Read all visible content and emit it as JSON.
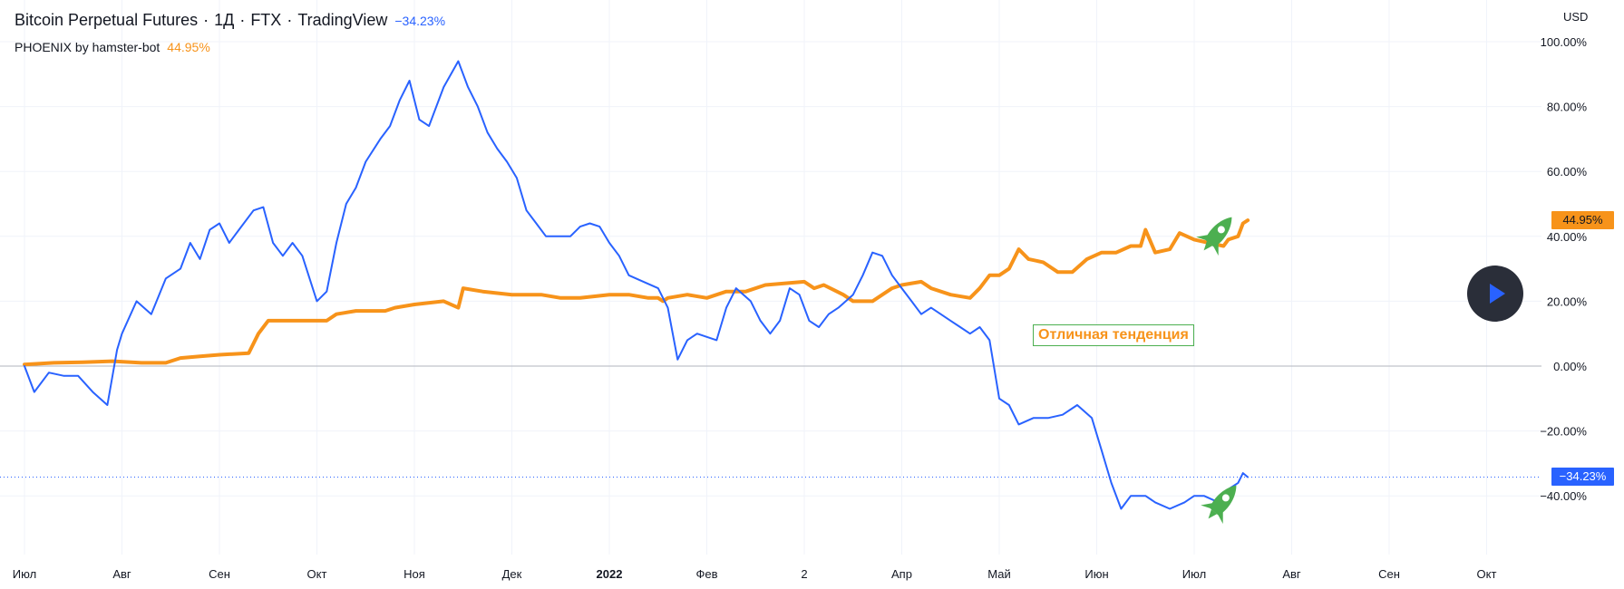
{
  "legend": {
    "symbol": "Bitcoin Perpetual Futures",
    "interval": "1Д",
    "exchange": "FTX",
    "source": "TradingView",
    "change": "−34.23%",
    "indicator_name": "PHOENIX by hamster-bot",
    "indicator_value": "44.95%"
  },
  "currency": "USD",
  "annotation": "Отличная тенденция",
  "price_tags": {
    "indicator": "44.95%",
    "price": "−34.23%"
  },
  "colors": {
    "btc_line": "#2962ff",
    "indicator_line": "#f7931a",
    "grid": "#f0f3fa",
    "zero_line": "#b2b5be",
    "rocket": "#4caf50"
  },
  "icons": [
    "rocket-icon",
    "play-icon"
  ],
  "chart_data": {
    "type": "line",
    "x_unit": "months since July 2021",
    "xlim": [
      -0.2,
      15.6
    ],
    "ylim": [
      -62,
      105
    ],
    "y_ticks": [
      100,
      80,
      60,
      40,
      20,
      0,
      -20,
      -40
    ],
    "y_tick_labels": [
      "100.00%",
      "80.00%",
      "60.00%",
      "40.00%",
      "20.00%",
      "0.00%",
      "−20.00%",
      "−40.00%"
    ],
    "x_ticks": [
      0,
      1,
      2,
      3,
      4,
      5,
      6,
      7,
      8,
      9,
      10,
      11,
      12,
      13,
      14,
      15
    ],
    "x_tick_labels": [
      "Июл",
      "Авг",
      "Сен",
      "Окт",
      "Ноя",
      "Дек",
      "2022",
      "Фев",
      "2",
      "Апр",
      "Май",
      "Июн",
      "Июл",
      "Авг",
      "Сен",
      "Окт"
    ],
    "grid": true,
    "series": [
      {
        "name": "Bitcoin Perpetual Futures",
        "color": "#2962ff",
        "points": [
          [
            0.0,
            0
          ],
          [
            0.1,
            -8
          ],
          [
            0.25,
            -2
          ],
          [
            0.4,
            -3
          ],
          [
            0.55,
            -3
          ],
          [
            0.7,
            -8
          ],
          [
            0.85,
            -12
          ],
          [
            0.95,
            5
          ],
          [
            1.0,
            10
          ],
          [
            1.15,
            20
          ],
          [
            1.3,
            16
          ],
          [
            1.45,
            27
          ],
          [
            1.6,
            30
          ],
          [
            1.7,
            38
          ],
          [
            1.8,
            33
          ],
          [
            1.9,
            42
          ],
          [
            2.0,
            44
          ],
          [
            2.1,
            38
          ],
          [
            2.2,
            42
          ],
          [
            2.35,
            48
          ],
          [
            2.45,
            49
          ],
          [
            2.55,
            38
          ],
          [
            2.65,
            34
          ],
          [
            2.75,
            38
          ],
          [
            2.85,
            34
          ],
          [
            3.0,
            20
          ],
          [
            3.1,
            23
          ],
          [
            3.2,
            38
          ],
          [
            3.3,
            50
          ],
          [
            3.4,
            55
          ],
          [
            3.5,
            63
          ],
          [
            3.65,
            70
          ],
          [
            3.75,
            74
          ],
          [
            3.85,
            82
          ],
          [
            3.95,
            88
          ],
          [
            4.05,
            76
          ],
          [
            4.15,
            74
          ],
          [
            4.3,
            86
          ],
          [
            4.45,
            94
          ],
          [
            4.55,
            86
          ],
          [
            4.65,
            80
          ],
          [
            4.75,
            72
          ],
          [
            4.85,
            67
          ],
          [
            4.95,
            63
          ],
          [
            5.05,
            58
          ],
          [
            5.15,
            48
          ],
          [
            5.25,
            44
          ],
          [
            5.35,
            40
          ],
          [
            5.5,
            40
          ],
          [
            5.6,
            40
          ],
          [
            5.7,
            43
          ],
          [
            5.8,
            44
          ],
          [
            5.9,
            43
          ],
          [
            6.0,
            38
          ],
          [
            6.1,
            34
          ],
          [
            6.2,
            28
          ],
          [
            6.35,
            26
          ],
          [
            6.5,
            24
          ],
          [
            6.6,
            18
          ],
          [
            6.7,
            2
          ],
          [
            6.8,
            8
          ],
          [
            6.9,
            10
          ],
          [
            7.0,
            9
          ],
          [
            7.1,
            8
          ],
          [
            7.2,
            18
          ],
          [
            7.3,
            24
          ],
          [
            7.45,
            20
          ],
          [
            7.55,
            14
          ],
          [
            7.65,
            10
          ],
          [
            7.75,
            14
          ],
          [
            7.85,
            24
          ],
          [
            7.95,
            22
          ],
          [
            8.05,
            14
          ],
          [
            8.15,
            12
          ],
          [
            8.25,
            16
          ],
          [
            8.35,
            18
          ],
          [
            8.5,
            22
          ],
          [
            8.6,
            28
          ],
          [
            8.7,
            35
          ],
          [
            8.8,
            34
          ],
          [
            8.9,
            28
          ],
          [
            9.0,
            24
          ],
          [
            9.1,
            20
          ],
          [
            9.2,
            16
          ],
          [
            9.3,
            18
          ],
          [
            9.4,
            16
          ],
          [
            9.5,
            14
          ],
          [
            9.6,
            12
          ],
          [
            9.7,
            10
          ],
          [
            9.8,
            12
          ],
          [
            9.9,
            8
          ],
          [
            10.0,
            -10
          ],
          [
            10.1,
            -12
          ],
          [
            10.2,
            -18
          ],
          [
            10.35,
            -16
          ],
          [
            10.5,
            -16
          ],
          [
            10.65,
            -15
          ],
          [
            10.8,
            -12
          ],
          [
            10.95,
            -16
          ],
          [
            11.05,
            -26
          ],
          [
            11.15,
            -36
          ],
          [
            11.25,
            -44
          ],
          [
            11.35,
            -40
          ],
          [
            11.5,
            -40
          ],
          [
            11.6,
            -42
          ],
          [
            11.75,
            -44
          ],
          [
            11.9,
            -42
          ],
          [
            12.0,
            -40
          ],
          [
            12.1,
            -40
          ],
          [
            12.25,
            -42
          ],
          [
            12.35,
            -38
          ],
          [
            12.45,
            -36
          ],
          [
            12.5,
            -33
          ],
          [
            12.55,
            -34.23
          ]
        ]
      },
      {
        "name": "PHOENIX by hamster-bot",
        "color": "#f7931a",
        "points": [
          [
            0.0,
            0.5
          ],
          [
            0.3,
            1
          ],
          [
            0.6,
            1.2
          ],
          [
            0.9,
            1.5
          ],
          [
            1.2,
            1.0
          ],
          [
            1.45,
            1.0
          ],
          [
            1.6,
            2.5
          ],
          [
            1.8,
            3
          ],
          [
            2.0,
            3.5
          ],
          [
            2.3,
            4
          ],
          [
            2.4,
            10
          ],
          [
            2.5,
            14
          ],
          [
            2.7,
            14
          ],
          [
            2.9,
            14
          ],
          [
            3.1,
            14
          ],
          [
            3.2,
            16
          ],
          [
            3.4,
            17
          ],
          [
            3.7,
            17
          ],
          [
            3.8,
            18
          ],
          [
            4.0,
            19
          ],
          [
            4.3,
            20
          ],
          [
            4.45,
            18
          ],
          [
            4.5,
            24
          ],
          [
            4.7,
            23
          ],
          [
            5.0,
            22
          ],
          [
            5.3,
            22
          ],
          [
            5.5,
            21
          ],
          [
            5.7,
            21
          ],
          [
            6.0,
            22
          ],
          [
            6.2,
            22
          ],
          [
            6.4,
            21
          ],
          [
            6.5,
            21
          ],
          [
            6.55,
            20
          ],
          [
            6.6,
            21
          ],
          [
            6.8,
            22
          ],
          [
            7.0,
            21
          ],
          [
            7.2,
            23
          ],
          [
            7.4,
            23
          ],
          [
            7.6,
            25
          ],
          [
            8.0,
            26
          ],
          [
            8.1,
            24
          ],
          [
            8.2,
            25
          ],
          [
            8.4,
            22
          ],
          [
            8.5,
            20
          ],
          [
            8.7,
            20
          ],
          [
            8.9,
            24
          ],
          [
            9.0,
            25
          ],
          [
            9.2,
            26
          ],
          [
            9.3,
            24
          ],
          [
            9.5,
            22
          ],
          [
            9.7,
            21
          ],
          [
            9.8,
            24
          ],
          [
            9.9,
            28
          ],
          [
            10.0,
            28
          ],
          [
            10.1,
            30
          ],
          [
            10.2,
            36
          ],
          [
            10.3,
            33
          ],
          [
            10.45,
            32
          ],
          [
            10.6,
            29
          ],
          [
            10.75,
            29
          ],
          [
            10.9,
            33
          ],
          [
            11.05,
            35
          ],
          [
            11.2,
            35
          ],
          [
            11.35,
            37
          ],
          [
            11.45,
            37
          ],
          [
            11.5,
            42
          ],
          [
            11.6,
            35
          ],
          [
            11.75,
            36
          ],
          [
            11.85,
            41
          ],
          [
            12.0,
            39
          ],
          [
            12.15,
            38
          ],
          [
            12.3,
            37
          ],
          [
            12.35,
            39
          ],
          [
            12.45,
            40
          ],
          [
            12.5,
            44
          ],
          [
            12.55,
            44.95
          ]
        ]
      }
    ]
  }
}
